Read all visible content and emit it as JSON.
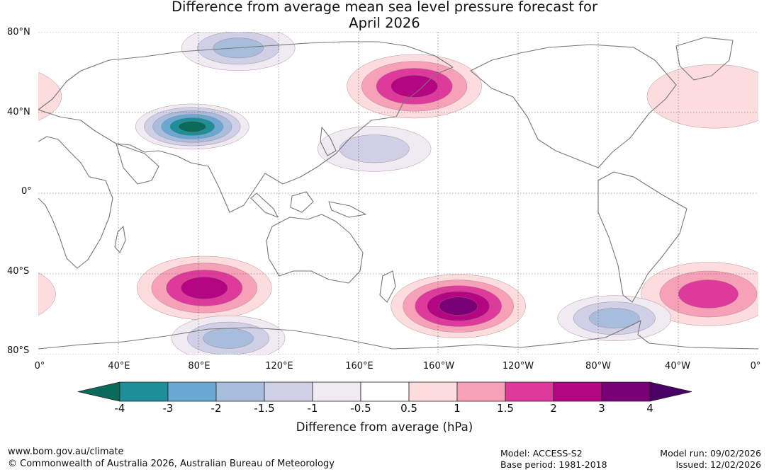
{
  "title_line1": "Difference from average mean sea level pressure forecast for",
  "title_line2": "April 2026",
  "lat_labels": [
    "80°N",
    "40°N",
    "0°",
    "40°S",
    "80°S"
  ],
  "lon_labels": [
    "0°",
    "40°E",
    "80°E",
    "120°E",
    "160°E",
    "160°W",
    "120°W",
    "80°W",
    "40°W",
    "0°"
  ],
  "colorbar": {
    "title": "Difference from average (hPa)",
    "ticks": [
      "-4",
      "-3",
      "-2",
      "-1.5",
      "-1",
      "-0.5",
      "0.5",
      "1",
      "1.5",
      "2",
      "3",
      "4"
    ],
    "colors": [
      "#0b6b5b",
      "#1e8f99",
      "#6aa8d2",
      "#a8bcdc",
      "#cfd0e6",
      "#f0eaf2",
      "#ffffff",
      "#fcdcdc",
      "#f7a1b8",
      "#de3a9b",
      "#b40682",
      "#7a0077",
      "#4a0064"
    ]
  },
  "footer": {
    "url": "www.bom.gov.au/climate",
    "copyright": "© Commonwealth of Australia 2026, Australian Bureau of Meteorology",
    "model": "Model: ACCESS-S2",
    "base_period": "Base period: 1981-2018",
    "model_run": "Model run: 09/02/2026",
    "issued": "Issued: 12/02/2026"
  },
  "anomaly_regions": [
    {
      "name": "north-pacific-high",
      "lon": -172,
      "lat": 53,
      "peak": 2.3
    },
    {
      "name": "south-pacific-high",
      "lon": -150,
      "lat": -56,
      "peak": 3.2
    },
    {
      "name": "south-indian-high",
      "lon": 83,
      "lat": -47,
      "peak": 2.4
    },
    {
      "name": "south-atlantic-high",
      "lon": -25,
      "lat": -50,
      "peak": 1.8
    },
    {
      "name": "north-atlantic-high",
      "lon": -22,
      "lat": 48,
      "peak": 0.8
    },
    {
      "name": "tibet-low",
      "lon": 77,
      "lat": 33,
      "peak": -4.0
    },
    {
      "name": "arctic-low",
      "lon": 100,
      "lat": 72,
      "peak": -1.6
    },
    {
      "name": "west-pacific-low",
      "lon": 168,
      "lat": 22,
      "peak": -1.2
    },
    {
      "name": "southern-ocean-low",
      "lon": 95,
      "lat": -72,
      "peak": -1.6
    },
    {
      "name": "antarctic-peninsula-low",
      "lon": -72,
      "lat": -62,
      "peak": -1.6
    }
  ]
}
